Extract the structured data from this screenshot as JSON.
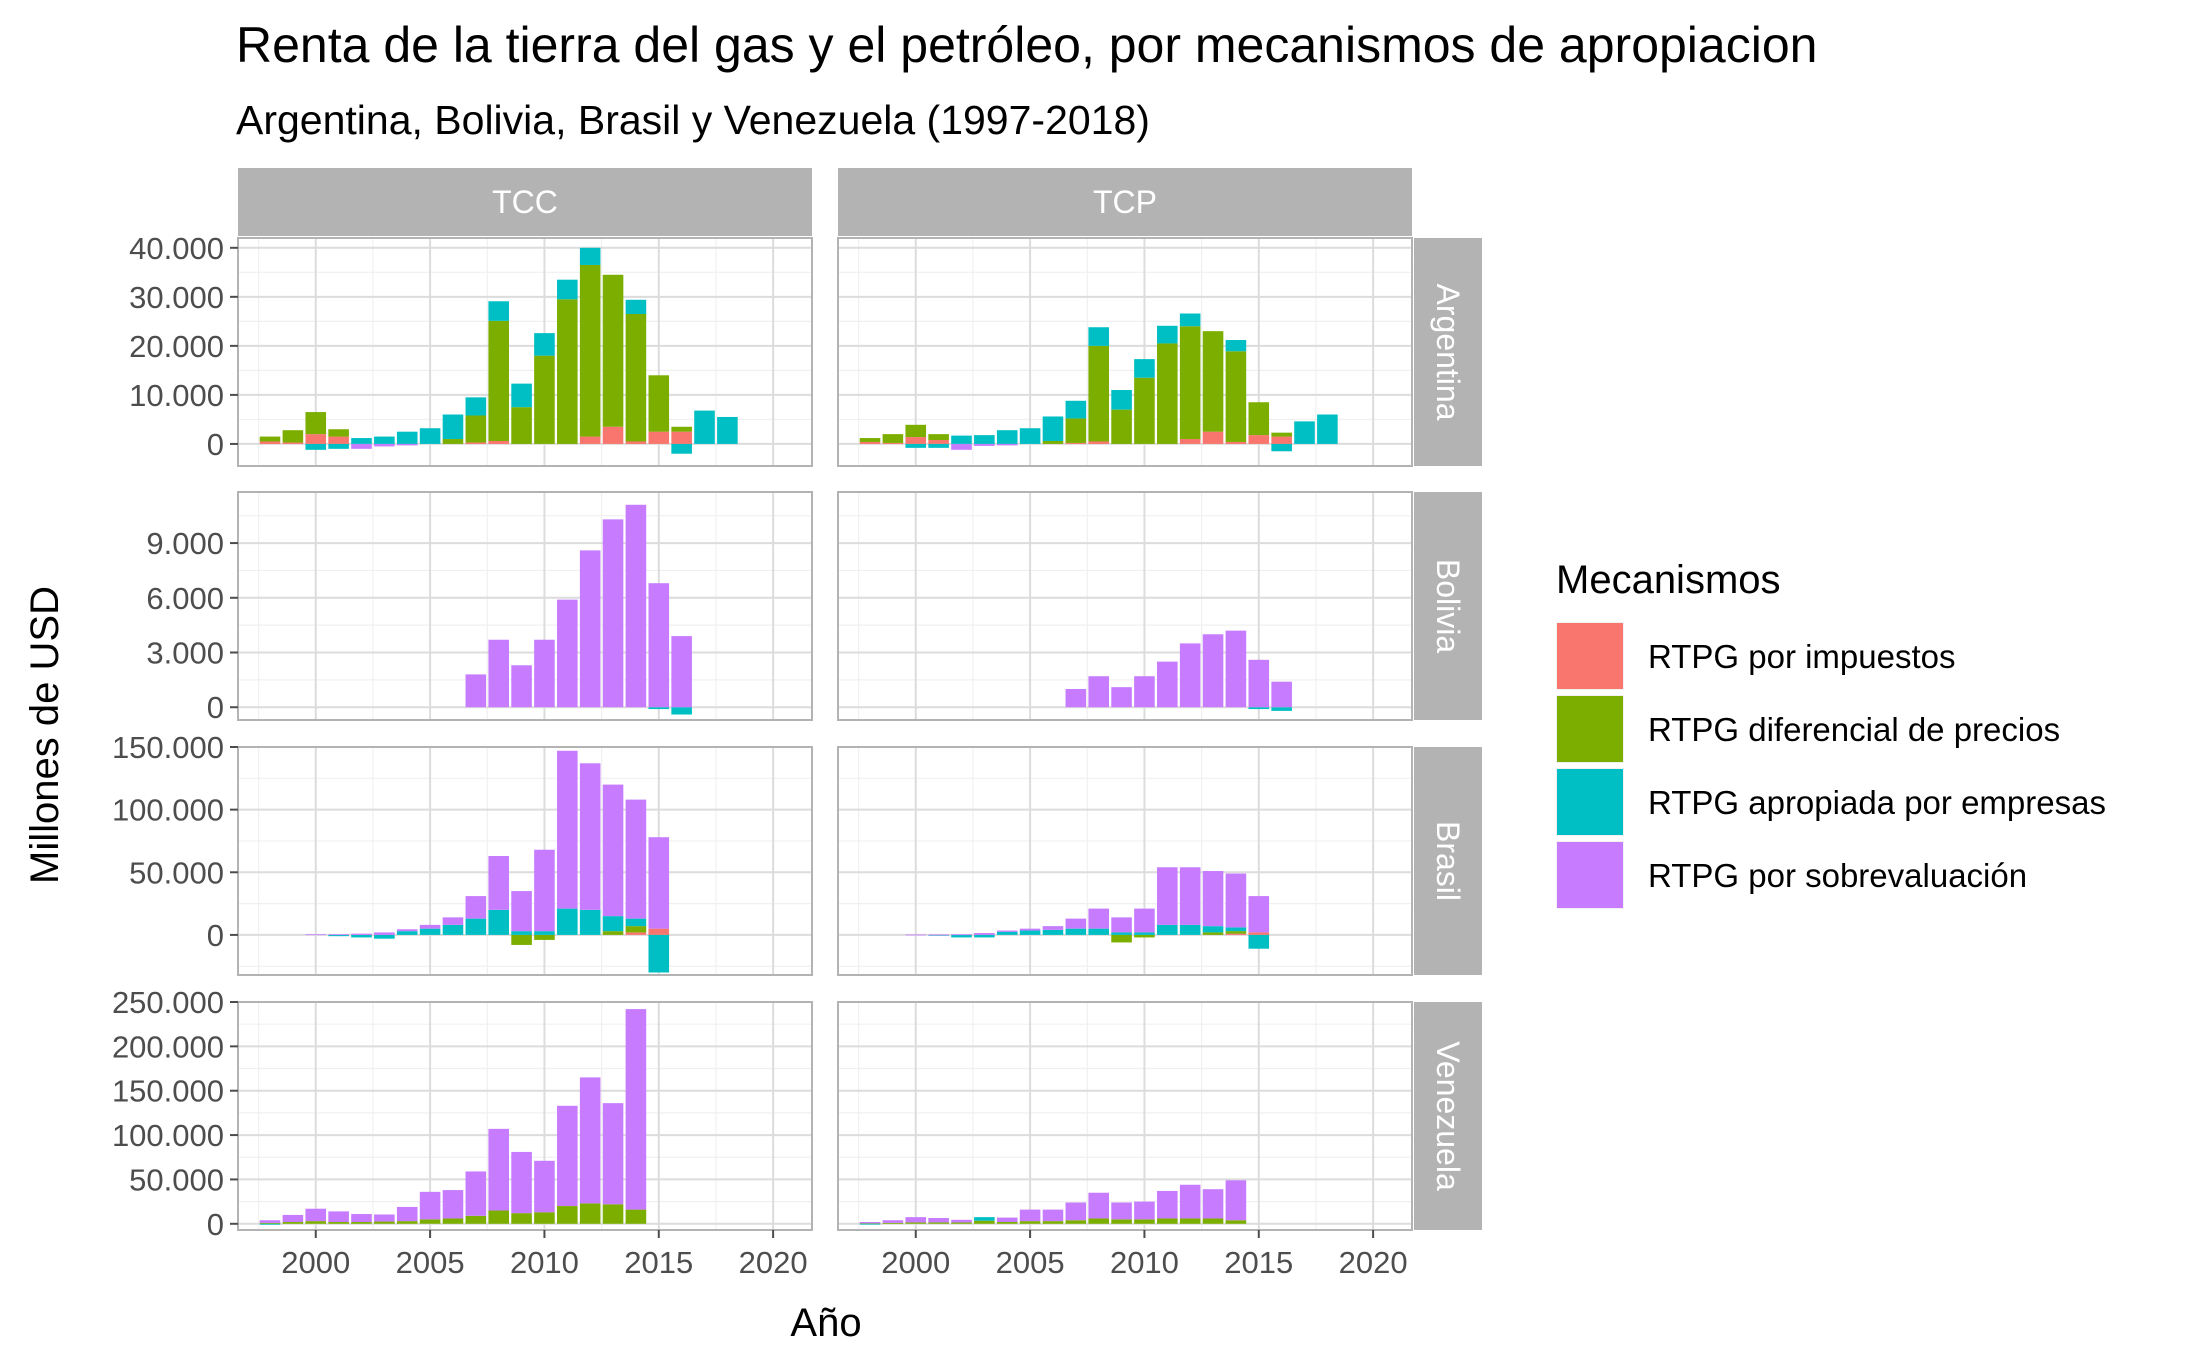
{
  "chart_data": {
    "type": "bar",
    "stacked": true,
    "faceted": true,
    "title": "Renta de la tierra del gas y el petróleo, por mecanismos de apropiacion",
    "subtitle": "Argentina, Bolivia, Brasil y Venezuela (1997-2018)",
    "xlabel": "Año",
    "ylabel": "Millones de USD",
    "xlim": [
      1996.6,
      2021.7
    ],
    "x_ticks": [
      2000,
      2005,
      2010,
      2015,
      2020
    ],
    "x_tick_labels": [
      "2000",
      "2005",
      "2010",
      "2015",
      "2020"
    ],
    "grid": true,
    "legend": {
      "title": "Mecanismos",
      "placement": "right"
    },
    "series_def": [
      {
        "name": "RTPG por impuestos",
        "color": "#F8766D"
      },
      {
        "name": "RTPG diferencial de precios",
        "color": "#7CAE00"
      },
      {
        "name": "RTPG apropiada por empresas",
        "color": "#00BFC4"
      },
      {
        "name": "RTPG por sobrevaluación",
        "color": "#C77CFF"
      }
    ],
    "column_labels": [
      "TCC",
      "TCP"
    ],
    "rows": [
      {
        "label": "Argentina",
        "ylim": [
          -4500,
          42000
        ],
        "y_ticks": [
          0,
          10000,
          20000,
          30000,
          40000
        ],
        "y_tick_labels": [
          "0",
          "10.000",
          "20.000",
          "30.000",
          "40.000"
        ]
      },
      {
        "label": "Bolivia",
        "ylim": [
          -700,
          11800
        ],
        "y_ticks": [
          0,
          3000,
          6000,
          9000
        ],
        "y_tick_labels": [
          "0",
          "3.000",
          "6.000",
          "9.000"
        ]
      },
      {
        "label": "Brasil",
        "ylim": [
          -32000,
          150000
        ],
        "y_ticks": [
          0,
          50000,
          100000,
          150000
        ],
        "y_tick_labels": [
          "0",
          "50.000",
          "100.000",
          "150.000"
        ]
      },
      {
        "label": "Venezuela",
        "ylim": [
          -7000,
          250000
        ],
        "y_ticks": [
          0,
          50000,
          100000,
          150000,
          200000,
          250000
        ],
        "y_tick_labels": [
          "0",
          "50.000",
          "100.000",
          "150.000",
          "200.000",
          "250.000"
        ]
      }
    ],
    "panels": [
      {
        "row": 0,
        "col": 0,
        "bars": [
          [
            1998,
            500,
            1000,
            0,
            0
          ],
          [
            1999,
            300,
            2500,
            0,
            0
          ],
          [
            2000,
            2000,
            4500,
            -1200,
            0
          ],
          [
            2001,
            1500,
            1500,
            -1000,
            0
          ],
          [
            2002,
            0,
            0,
            1200,
            -1000
          ],
          [
            2003,
            0,
            0,
            1500,
            -500
          ],
          [
            2004,
            0,
            0,
            2500,
            -300
          ],
          [
            2005,
            0,
            0,
            3200,
            0
          ],
          [
            2006,
            0,
            1000,
            5000,
            0
          ],
          [
            2007,
            300,
            5500,
            3700,
            0
          ],
          [
            2008,
            600,
            24500,
            4000,
            0
          ],
          [
            2009,
            0,
            7500,
            4800,
            0
          ],
          [
            2010,
            0,
            18000,
            4600,
            0
          ],
          [
            2011,
            0,
            29500,
            4000,
            0
          ],
          [
            2012,
            1500,
            35000,
            3500,
            0
          ],
          [
            2013,
            3500,
            31000,
            0,
            0
          ],
          [
            2014,
            500,
            26000,
            2900,
            0
          ],
          [
            2015,
            2500,
            11500,
            0,
            0
          ],
          [
            2016,
            2500,
            1000,
            -2000,
            0
          ],
          [
            2017,
            0,
            0,
            6800,
            0
          ],
          [
            2018,
            0,
            0,
            5500,
            0
          ]
        ]
      },
      {
        "row": 0,
        "col": 1,
        "bars": [
          [
            1998,
            400,
            800,
            0,
            0
          ],
          [
            1999,
            200,
            1800,
            0,
            0
          ],
          [
            2000,
            1400,
            2500,
            -800,
            0
          ],
          [
            2001,
            800,
            1200,
            -800,
            0
          ],
          [
            2002,
            0,
            0,
            1700,
            -1200
          ],
          [
            2003,
            0,
            0,
            1800,
            -400
          ],
          [
            2004,
            0,
            0,
            2800,
            -300
          ],
          [
            2005,
            0,
            0,
            3200,
            0
          ],
          [
            2006,
            0,
            600,
            5000,
            0
          ],
          [
            2007,
            200,
            5000,
            3600,
            0
          ],
          [
            2008,
            500,
            19500,
            3800,
            0
          ],
          [
            2009,
            0,
            7000,
            4000,
            0
          ],
          [
            2010,
            0,
            13500,
            3800,
            0
          ],
          [
            2011,
            0,
            20500,
            3600,
            0
          ],
          [
            2012,
            1000,
            23000,
            2600,
            0
          ],
          [
            2013,
            2500,
            20500,
            0,
            0
          ],
          [
            2014,
            400,
            18500,
            2300,
            0
          ],
          [
            2015,
            1800,
            6700,
            0,
            0
          ],
          [
            2016,
            1500,
            800,
            -1500,
            0
          ],
          [
            2017,
            0,
            0,
            4600,
            0
          ],
          [
            2018,
            0,
            0,
            6000,
            0
          ]
        ]
      },
      {
        "row": 1,
        "col": 0,
        "bars": [
          [
            2007,
            0,
            0,
            0,
            1800
          ],
          [
            2008,
            0,
            0,
            0,
            3700
          ],
          [
            2009,
            0,
            0,
            0,
            2300
          ],
          [
            2010,
            0,
            0,
            0,
            3700
          ],
          [
            2011,
            0,
            0,
            0,
            5900
          ],
          [
            2012,
            0,
            0,
            0,
            8600
          ],
          [
            2013,
            0,
            0,
            0,
            10300
          ],
          [
            2014,
            0,
            0,
            0,
            11100
          ],
          [
            2015,
            0,
            0,
            -100,
            6800
          ],
          [
            2016,
            0,
            0,
            -400,
            3900
          ]
        ]
      },
      {
        "row": 1,
        "col": 1,
        "bars": [
          [
            2007,
            0,
            0,
            0,
            1000
          ],
          [
            2008,
            0,
            0,
            0,
            1700
          ],
          [
            2009,
            0,
            0,
            0,
            1100
          ],
          [
            2010,
            0,
            0,
            0,
            1700
          ],
          [
            2011,
            0,
            0,
            0,
            2500
          ],
          [
            2012,
            0,
            0,
            0,
            3500
          ],
          [
            2013,
            0,
            0,
            0,
            4000
          ],
          [
            2014,
            0,
            0,
            0,
            4200
          ],
          [
            2015,
            0,
            0,
            -100,
            2600
          ],
          [
            2016,
            0,
            0,
            -200,
            1400
          ]
        ]
      },
      {
        "row": 2,
        "col": 0,
        "bars": [
          [
            2000,
            0,
            0,
            0,
            500
          ],
          [
            2001,
            0,
            0,
            -1000,
            500
          ],
          [
            2002,
            0,
            0,
            -2000,
            1000
          ],
          [
            2003,
            0,
            0,
            -3000,
            2000
          ],
          [
            2004,
            0,
            0,
            3000,
            1500
          ],
          [
            2005,
            0,
            0,
            5000,
            3000
          ],
          [
            2006,
            0,
            0,
            8000,
            6000
          ],
          [
            2007,
            0,
            0,
            13000,
            18000
          ],
          [
            2008,
            0,
            0,
            20000,
            43000
          ],
          [
            2009,
            0,
            -8000,
            3000,
            32000
          ],
          [
            2010,
            0,
            -4000,
            3000,
            65000
          ],
          [
            2011,
            0,
            0,
            21000,
            126000
          ],
          [
            2012,
            0,
            0,
            20000,
            117000
          ],
          [
            2013,
            0,
            3000,
            12000,
            105000
          ],
          [
            2014,
            2000,
            5000,
            6000,
            95000
          ],
          [
            2015,
            5000,
            0,
            -30000,
            73000
          ]
        ]
      },
      {
        "row": 2,
        "col": 1,
        "bars": [
          [
            2000,
            0,
            0,
            0,
            300
          ],
          [
            2001,
            0,
            0,
            -600,
            300
          ],
          [
            2002,
            0,
            0,
            -2000,
            500
          ],
          [
            2003,
            0,
            0,
            -2000,
            1500
          ],
          [
            2004,
            0,
            0,
            2500,
            1000
          ],
          [
            2005,
            0,
            0,
            3500,
            1500
          ],
          [
            2006,
            0,
            0,
            4000,
            3000
          ],
          [
            2007,
            0,
            0,
            5000,
            8000
          ],
          [
            2008,
            0,
            0,
            5000,
            16000
          ],
          [
            2009,
            0,
            -6000,
            2000,
            12000
          ],
          [
            2010,
            0,
            -2000,
            2000,
            19000
          ],
          [
            2011,
            0,
            0,
            8000,
            46000
          ],
          [
            2012,
            0,
            0,
            8000,
            46000
          ],
          [
            2013,
            0,
            2000,
            5000,
            44000
          ],
          [
            2014,
            1000,
            2000,
            3000,
            43000
          ],
          [
            2015,
            2000,
            0,
            -11000,
            29000
          ]
        ]
      },
      {
        "row": 3,
        "col": 0,
        "bars": [
          [
            1998,
            0,
            1000,
            -1000,
            3000
          ],
          [
            1999,
            0,
            2000,
            0,
            8000
          ],
          [
            2000,
            0,
            3000,
            0,
            14000
          ],
          [
            2001,
            0,
            2000,
            0,
            12000
          ],
          [
            2002,
            0,
            2000,
            0,
            9000
          ],
          [
            2003,
            0,
            2500,
            0,
            8000
          ],
          [
            2004,
            0,
            3000,
            0,
            16000
          ],
          [
            2005,
            0,
            5000,
            0,
            31000
          ],
          [
            2006,
            0,
            6000,
            0,
            32000
          ],
          [
            2007,
            0,
            9000,
            0,
            50000
          ],
          [
            2008,
            0,
            15000,
            0,
            92000
          ],
          [
            2009,
            0,
            12000,
            0,
            69000
          ],
          [
            2010,
            0,
            13000,
            0,
            58000
          ],
          [
            2011,
            0,
            20000,
            0,
            113000
          ],
          [
            2012,
            0,
            23000,
            0,
            142000
          ],
          [
            2013,
            0,
            22000,
            0,
            114000
          ],
          [
            2014,
            0,
            16000,
            0,
            226000
          ]
        ]
      },
      {
        "row": 3,
        "col": 1,
        "bars": [
          [
            1998,
            0,
            500,
            -500,
            1500
          ],
          [
            1999,
            0,
            1000,
            0,
            3000
          ],
          [
            2000,
            0,
            1500,
            0,
            6000
          ],
          [
            2001,
            0,
            1500,
            0,
            5000
          ],
          [
            2002,
            0,
            1500,
            0,
            3000
          ],
          [
            2003,
            0,
            3500,
            4000,
            0
          ],
          [
            2004,
            0,
            2000,
            0,
            5000
          ],
          [
            2005,
            0,
            3000,
            0,
            13000
          ],
          [
            2006,
            0,
            3000,
            0,
            13000
          ],
          [
            2007,
            0,
            4000,
            0,
            20000
          ],
          [
            2008,
            0,
            6000,
            0,
            29000
          ],
          [
            2009,
            0,
            5000,
            0,
            19000
          ],
          [
            2010,
            0,
            5000,
            0,
            20000
          ],
          [
            2011,
            0,
            6000,
            0,
            31000
          ],
          [
            2012,
            0,
            6000,
            0,
            38000
          ],
          [
            2013,
            0,
            6000,
            0,
            33000
          ],
          [
            2014,
            0,
            4000,
            0,
            45000
          ]
        ]
      }
    ]
  }
}
